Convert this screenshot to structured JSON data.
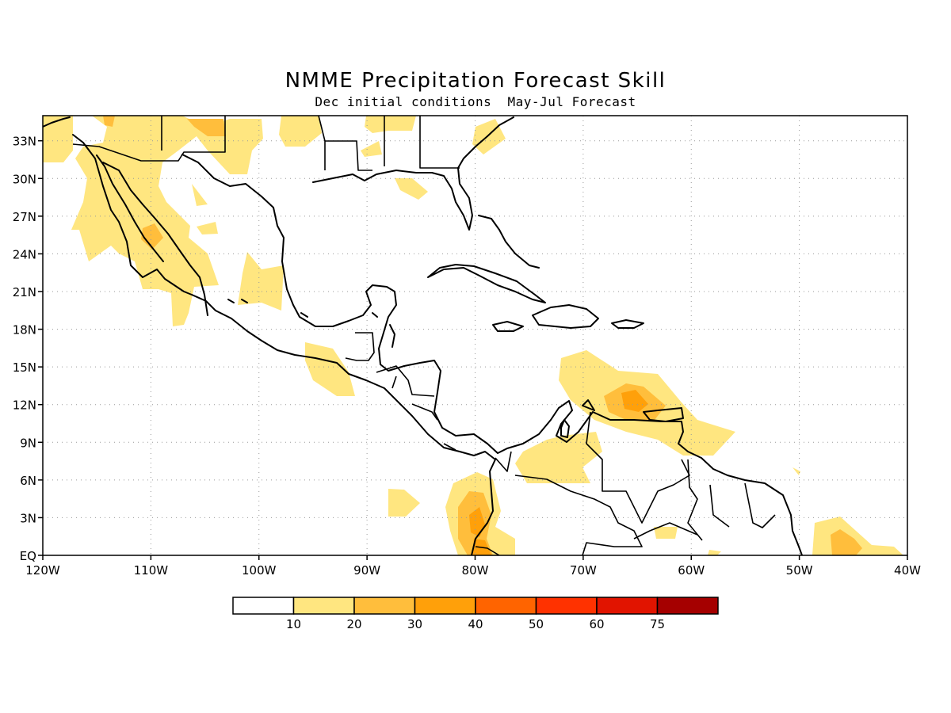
{
  "title": "NMME Precipitation Forecast Skill",
  "subtitle": "Dec initial conditions  May-Jul Forecast",
  "map": {
    "lon_range": [
      -120,
      -40
    ],
    "lat_range": [
      0,
      35
    ],
    "x_ticks": [
      "120W",
      "110W",
      "100W",
      "90W",
      "80W",
      "70W",
      "60W",
      "50W",
      "40W"
    ],
    "y_ticks": [
      "EQ",
      "3N",
      "6N",
      "9N",
      "12N",
      "15N",
      "18N",
      "21N",
      "24N",
      "27N",
      "30N",
      "33N"
    ],
    "grid": "dotted"
  },
  "legend": {
    "labels": [
      "10",
      "20",
      "30",
      "40",
      "50",
      "60",
      "75"
    ],
    "colors": [
      "#ffffff",
      "#ffe680",
      "#ffbe3c",
      "#ffa00a",
      "#ff6400",
      "#ff3200",
      "#e11400",
      "#a50000"
    ]
  },
  "colors": {
    "level_10_20": "#ffe680",
    "level_20_30": "#ffbe3c",
    "level_30_40": "#ffa00a"
  }
}
